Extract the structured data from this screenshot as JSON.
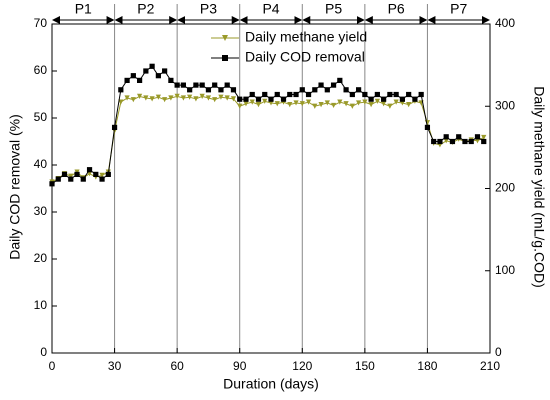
{
  "chart_data": {
    "type": "line",
    "x_label": "Duration (days)",
    "y_label": "Daily COD removal (%)",
    "y2_label": "Daily methane yield (mL/g.COD)",
    "xlim": [
      0,
      210
    ],
    "xticks": [
      0,
      30,
      60,
      90,
      120,
      150,
      180,
      210
    ],
    "ylim": [
      0,
      70
    ],
    "yticks": [
      0,
      10,
      20,
      30,
      40,
      50,
      60,
      70
    ],
    "y2lim": [
      0,
      400
    ],
    "y2ticks": [
      0,
      100,
      200,
      300,
      400
    ],
    "legend": "top",
    "phases": [
      {
        "label": "P1",
        "start": 0,
        "end": 30
      },
      {
        "label": "P2",
        "start": 30,
        "end": 60
      },
      {
        "label": "P3",
        "start": 60,
        "end": 90
      },
      {
        "label": "P4",
        "start": 90,
        "end": 120
      },
      {
        "label": "P5",
        "start": 120,
        "end": 150
      },
      {
        "label": "P6",
        "start": 150,
        "end": 180
      },
      {
        "label": "P7",
        "start": 180,
        "end": 210
      }
    ],
    "x": [
      0,
      3,
      6,
      9,
      12,
      15,
      18,
      21,
      24,
      27,
      30,
      33,
      36,
      39,
      42,
      45,
      48,
      51,
      54,
      57,
      60,
      63,
      66,
      69,
      72,
      75,
      78,
      81,
      84,
      87,
      90,
      93,
      96,
      99,
      102,
      105,
      108,
      111,
      114,
      117,
      120,
      123,
      126,
      129,
      132,
      135,
      138,
      141,
      144,
      147,
      150,
      153,
      156,
      159,
      162,
      165,
      168,
      171,
      174,
      177,
      180,
      183,
      186,
      189,
      192,
      195,
      198,
      201,
      204,
      207
    ],
    "series": [
      {
        "name": "Daily methane yield",
        "color": "#9a9a2a",
        "marker": "triangle-down",
        "axis": "y2",
        "values": [
          208,
          212,
          218,
          215,
          220,
          213,
          218,
          214,
          216,
          220,
          270,
          305,
          310,
          308,
          312,
          310,
          309,
          311,
          308,
          310,
          312,
          310,
          311,
          309,
          312,
          310,
          308,
          311,
          310,
          309,
          300,
          303,
          305,
          302,
          306,
          304,
          303,
          305,
          302,
          304,
          303,
          305,
          300,
          302,
          304,
          301,
          305,
          303,
          300,
          304,
          305,
          302,
          306,
          303,
          300,
          305,
          304,
          302,
          306,
          304,
          280,
          255,
          253,
          258,
          256,
          260,
          257,
          259,
          258,
          262
        ]
      },
      {
        "name": "Daily COD removal",
        "color": "#000000",
        "marker": "square",
        "axis": "y",
        "values": [
          36,
          37,
          38,
          37,
          38,
          37,
          39,
          38,
          37,
          38,
          48,
          56,
          58,
          59,
          58,
          60,
          61,
          59,
          60,
          58,
          57,
          57,
          56,
          57,
          57,
          56,
          57,
          56,
          57,
          56,
          54,
          54,
          55,
          54,
          55,
          54,
          55,
          54,
          55,
          55,
          56,
          55,
          56,
          57,
          56,
          57,
          58,
          56,
          55,
          56,
          55,
          54,
          55,
          54,
          55,
          55,
          54,
          55,
          54,
          55,
          48,
          45,
          45,
          46,
          45,
          46,
          45,
          45,
          46,
          45
        ]
      }
    ]
  }
}
